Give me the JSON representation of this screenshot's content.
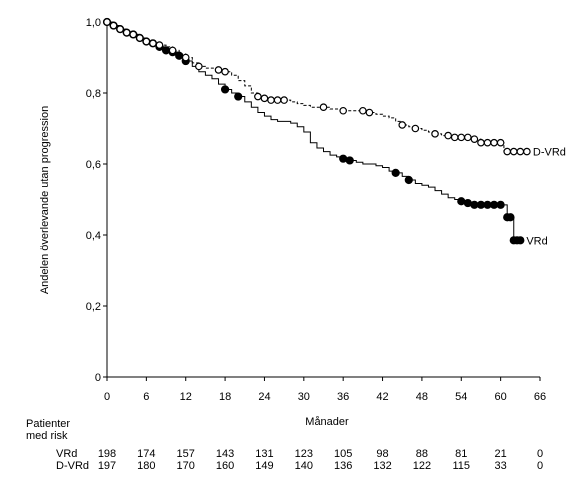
{
  "chart_data": {
    "type": "line",
    "title": "",
    "xlabel": "Månader",
    "ylabel": "Andelen överlevande utan progression",
    "xlim": [
      0,
      66
    ],
    "ylim": [
      0,
      1.0
    ],
    "x_ticks": [
      "0",
      "6",
      "12",
      "18",
      "24",
      "30",
      "36",
      "42",
      "48",
      "54",
      "60",
      "66"
    ],
    "y_ticks": [
      "0",
      "0,2",
      "0,4",
      "0,6",
      "0,8",
      "1,0"
    ],
    "grid": false,
    "series": [
      {
        "name": "VRd",
        "style": "solid",
        "marker": "filled-circle",
        "points": [
          [
            0,
            1.0
          ],
          [
            1,
            0.99
          ],
          [
            2,
            0.98
          ],
          [
            3,
            0.97
          ],
          [
            4,
            0.965
          ],
          [
            5,
            0.955
          ],
          [
            6,
            0.945
          ],
          [
            7,
            0.94
          ],
          [
            8,
            0.93
          ],
          [
            9,
            0.92
          ],
          [
            10,
            0.915
          ],
          [
            11,
            0.905
          ],
          [
            12,
            0.89
          ],
          [
            13,
            0.875
          ],
          [
            14,
            0.86
          ],
          [
            15,
            0.85
          ],
          [
            16,
            0.84
          ],
          [
            17,
            0.825
          ],
          [
            18,
            0.81
          ],
          [
            19,
            0.8
          ],
          [
            20,
            0.79
          ],
          [
            21,
            0.775
          ],
          [
            22,
            0.76
          ],
          [
            23,
            0.745
          ],
          [
            24,
            0.735
          ],
          [
            25,
            0.725
          ],
          [
            26,
            0.72
          ],
          [
            27,
            0.72
          ],
          [
            28,
            0.715
          ],
          [
            29,
            0.705
          ],
          [
            30,
            0.69
          ],
          [
            31,
            0.66
          ],
          [
            32,
            0.645
          ],
          [
            33,
            0.635
          ],
          [
            34,
            0.625
          ],
          [
            35,
            0.62
          ],
          [
            36,
            0.615
          ],
          [
            37,
            0.61
          ],
          [
            38,
            0.605
          ],
          [
            39,
            0.6
          ],
          [
            40,
            0.6
          ],
          [
            41,
            0.595
          ],
          [
            42,
            0.59
          ],
          [
            43,
            0.58
          ],
          [
            44,
            0.575
          ],
          [
            45,
            0.565
          ],
          [
            46,
            0.555
          ],
          [
            47,
            0.545
          ],
          [
            48,
            0.54
          ],
          [
            49,
            0.535
          ],
          [
            50,
            0.525
          ],
          [
            51,
            0.515
          ],
          [
            52,
            0.505
          ],
          [
            53,
            0.5
          ],
          [
            54,
            0.495
          ],
          [
            55,
            0.49
          ],
          [
            56,
            0.485
          ],
          [
            58,
            0.485
          ],
          [
            60,
            0.485
          ],
          [
            61,
            0.45
          ],
          [
            61.5,
            0.45
          ],
          [
            62,
            0.385
          ],
          [
            63,
            0.385
          ]
        ],
        "marker_x": [
          0,
          1,
          2,
          3,
          4,
          5,
          6,
          7,
          8,
          9,
          10,
          11,
          12,
          18,
          20,
          36,
          37,
          44,
          46,
          54,
          55,
          56,
          57,
          58,
          59,
          60,
          61,
          61.5,
          62,
          62.5,
          63
        ]
      },
      {
        "name": "D-VRd",
        "style": "dashed",
        "marker": "open-circle",
        "points": [
          [
            0,
            1.0
          ],
          [
            1,
            0.99
          ],
          [
            2,
            0.98
          ],
          [
            3,
            0.97
          ],
          [
            4,
            0.965
          ],
          [
            5,
            0.955
          ],
          [
            6,
            0.945
          ],
          [
            7,
            0.94
          ],
          [
            8,
            0.935
          ],
          [
            9,
            0.93
          ],
          [
            10,
            0.92
          ],
          [
            11,
            0.91
          ],
          [
            12,
            0.9
          ],
          [
            13,
            0.885
          ],
          [
            14,
            0.875
          ],
          [
            15,
            0.87
          ],
          [
            16,
            0.87
          ],
          [
            17,
            0.865
          ],
          [
            18,
            0.86
          ],
          [
            19,
            0.85
          ],
          [
            20,
            0.835
          ],
          [
            21,
            0.82
          ],
          [
            22,
            0.8
          ],
          [
            23,
            0.79
          ],
          [
            24,
            0.785
          ],
          [
            25,
            0.78
          ],
          [
            26,
            0.78
          ],
          [
            27,
            0.78
          ],
          [
            28,
            0.775
          ],
          [
            29,
            0.77
          ],
          [
            30,
            0.765
          ],
          [
            31,
            0.76
          ],
          [
            32,
            0.76
          ],
          [
            33,
            0.76
          ],
          [
            34,
            0.755
          ],
          [
            35,
            0.755
          ],
          [
            36,
            0.75
          ],
          [
            37,
            0.75
          ],
          [
            38,
            0.75
          ],
          [
            39,
            0.75
          ],
          [
            40,
            0.745
          ],
          [
            41,
            0.74
          ],
          [
            42,
            0.735
          ],
          [
            43,
            0.73
          ],
          [
            44,
            0.72
          ],
          [
            45,
            0.71
          ],
          [
            46,
            0.705
          ],
          [
            47,
            0.7
          ],
          [
            48,
            0.695
          ],
          [
            49,
            0.69
          ],
          [
            50,
            0.685
          ],
          [
            51,
            0.68
          ],
          [
            52,
            0.68
          ],
          [
            53,
            0.675
          ],
          [
            54,
            0.675
          ],
          [
            55,
            0.675
          ],
          [
            56,
            0.67
          ],
          [
            57,
            0.66
          ],
          [
            58,
            0.66
          ],
          [
            59,
            0.66
          ],
          [
            60,
            0.66
          ],
          [
            60.5,
            0.635
          ],
          [
            61,
            0.635
          ],
          [
            62,
            0.635
          ],
          [
            63,
            0.635
          ],
          [
            64,
            0.635
          ]
        ],
        "marker_x": [
          0,
          1,
          2,
          3,
          4,
          5,
          6,
          7,
          8,
          10,
          12,
          14,
          17,
          18,
          23,
          24,
          25,
          26,
          27,
          33,
          36,
          39,
          40,
          45,
          47,
          50,
          52,
          53,
          54,
          55,
          56,
          57,
          58,
          59,
          60,
          61,
          62,
          63,
          64
        ]
      }
    ],
    "risk_table": {
      "label_line1": "Patienter",
      "label_line2": "med risk",
      "times": [
        0,
        6,
        12,
        18,
        24,
        30,
        36,
        42,
        48,
        54,
        60,
        66
      ],
      "rows": [
        {
          "name": "VRd",
          "counts": [
            "198",
            "174",
            "157",
            "143",
            "131",
            "123",
            "105",
            "98",
            "88",
            "81",
            "21",
            "0"
          ]
        },
        {
          "name": "D-VRd",
          "counts": [
            "197",
            "180",
            "170",
            "160",
            "149",
            "140",
            "136",
            "132",
            "122",
            "115",
            "33",
            "0"
          ]
        }
      ]
    }
  }
}
